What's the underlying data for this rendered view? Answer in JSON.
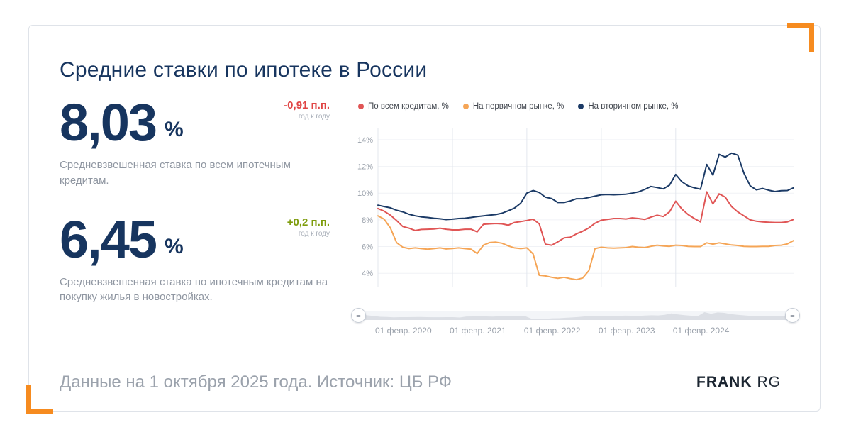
{
  "header": {
    "title": "Средние ставки по ипотеке в России"
  },
  "stats": [
    {
      "value": "8,03",
      "unit": "%",
      "delta": "-0,91 п.п.",
      "delta_color": "#e04545",
      "delta_note": "год к году",
      "caption": "Средневзвешенная ставка по всем ипотечным кредитам."
    },
    {
      "value": "6,45",
      "unit": "%",
      "delta": "+0,2 п.п.",
      "delta_color": "#7e9c0d",
      "delta_note": "год к году",
      "caption": "Средневзвешенная ставка по ипотечным кредитам на покупку жилья в новостройках."
    }
  ],
  "footer": {
    "text": "Данные на 1 октября 2025 года. Источник: ЦБ РФ",
    "logo_primary": "FRANK",
    "logo_secondary": "RG"
  },
  "accent": {
    "bracket_color": "#f68b1f",
    "navy": "#17355f"
  },
  "chart_data": {
    "type": "line",
    "title": "Средние ставки по ипотеке в России",
    "x_unit": "месяц (февр. 2020 — сент. 2025)",
    "ylim": [
      3,
      14.9
    ],
    "grid": true,
    "legend_position": "top",
    "y_ticks": [
      {
        "value": 4,
        "label": "4%"
      },
      {
        "value": 6,
        "label": "6%"
      },
      {
        "value": 8,
        "label": "8%"
      },
      {
        "value": 10,
        "label": "10%"
      },
      {
        "value": 12,
        "label": "12%"
      },
      {
        "value": 14,
        "label": "14%"
      }
    ],
    "x_ticks": [
      {
        "index": 0,
        "label": "01 февр. 2020"
      },
      {
        "index": 12,
        "label": "01 февр. 2021"
      },
      {
        "index": 24,
        "label": "01 февр. 2022"
      },
      {
        "index": 36,
        "label": "01 февр. 2023"
      },
      {
        "index": 48,
        "label": "01 февр. 2024"
      }
    ],
    "series": [
      {
        "name": "По всем кредитам, %",
        "color": "#e05555",
        "values": [
          8.85,
          8.65,
          8.35,
          7.95,
          7.5,
          7.38,
          7.2,
          7.28,
          7.3,
          7.32,
          7.38,
          7.3,
          7.25,
          7.25,
          7.3,
          7.3,
          7.1,
          7.67,
          7.7,
          7.73,
          7.7,
          7.6,
          7.8,
          7.87,
          7.95,
          8.05,
          7.7,
          6.17,
          6.1,
          6.35,
          6.65,
          6.7,
          6.95,
          7.15,
          7.4,
          7.75,
          7.97,
          8.03,
          8.1,
          8.1,
          8.07,
          8.15,
          8.1,
          8.03,
          8.2,
          8.35,
          8.25,
          8.6,
          9.4,
          8.8,
          8.4,
          8.1,
          7.85,
          10.1,
          9.2,
          9.95,
          9.7,
          9.0,
          8.6,
          8.3,
          8.0,
          7.9,
          7.85,
          7.82,
          7.8,
          7.8,
          7.85,
          8.03
        ]
      },
      {
        "name": "На первичном рынке, %",
        "color": "#f5a556",
        "values": [
          8.3,
          8.05,
          7.4,
          6.3,
          5.95,
          5.85,
          5.9,
          5.85,
          5.8,
          5.85,
          5.9,
          5.82,
          5.86,
          5.9,
          5.85,
          5.8,
          5.48,
          6.1,
          6.3,
          6.33,
          6.25,
          6.05,
          5.9,
          5.85,
          5.9,
          5.45,
          3.85,
          3.8,
          3.7,
          3.62,
          3.7,
          3.6,
          3.52,
          3.65,
          4.2,
          5.85,
          5.95,
          5.9,
          5.88,
          5.9,
          5.92,
          6.0,
          5.95,
          5.92,
          6.02,
          6.1,
          6.05,
          6.02,
          6.1,
          6.08,
          6.02,
          6.0,
          6.0,
          6.28,
          6.18,
          6.28,
          6.2,
          6.12,
          6.08,
          6.02,
          6.0,
          6.0,
          6.02,
          6.02,
          6.08,
          6.1,
          6.2,
          6.45
        ]
      },
      {
        "name": "На вторичном рынке, %",
        "color": "#1b3a66",
        "values": [
          9.1,
          9.0,
          8.9,
          8.72,
          8.6,
          8.42,
          8.3,
          8.22,
          8.18,
          8.12,
          8.08,
          8.02,
          8.05,
          8.1,
          8.12,
          8.18,
          8.25,
          8.3,
          8.35,
          8.4,
          8.5,
          8.68,
          8.88,
          9.25,
          10.0,
          10.2,
          10.05,
          9.7,
          9.6,
          9.3,
          9.3,
          9.42,
          9.58,
          9.58,
          9.68,
          9.78,
          9.88,
          9.9,
          9.88,
          9.9,
          9.92,
          10.0,
          10.1,
          10.28,
          10.5,
          10.42,
          10.32,
          10.6,
          11.4,
          10.85,
          10.55,
          10.4,
          10.3,
          12.15,
          11.35,
          12.9,
          12.7,
          13.0,
          12.85,
          11.5,
          10.55,
          10.25,
          10.35,
          10.22,
          10.12,
          10.18,
          10.2,
          10.4
        ]
      }
    ],
    "scrollbar": {
      "handle_icon": "≡"
    }
  }
}
